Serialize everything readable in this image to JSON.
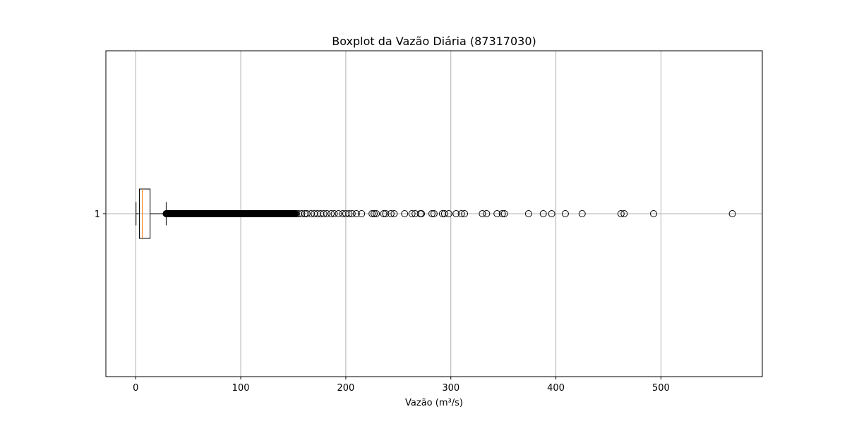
{
  "chart_data": {
    "type": "boxplot",
    "orientation": "horizontal",
    "title": "Boxplot da Vazão Diária (87317030)",
    "xlabel": "Vazão (m³/s)",
    "ylabel": "",
    "xlim": [
      -28.4,
      596.5
    ],
    "xticks": [
      0,
      100,
      200,
      300,
      400,
      500
    ],
    "yticks": [
      "1"
    ],
    "grid": true,
    "box": {
      "category": "1",
      "whisker_low": 0.3,
      "q1": 3.5,
      "median": 6.2,
      "q3": 13.7,
      "whisker_high": 29.0
    },
    "outlier_band": [
      29.0,
      152.0
    ],
    "outliers": [
      153,
      155,
      158,
      161,
      163,
      167,
      170,
      173,
      176,
      179,
      182,
      186,
      189,
      193,
      197,
      200,
      203,
      206,
      210,
      215,
      225,
      227,
      229,
      236,
      238,
      243,
      246,
      256,
      263,
      266,
      271,
      272,
      282,
      284,
      292,
      294,
      298,
      305,
      310,
      313,
      330,
      334,
      344,
      349,
      351,
      374,
      388,
      396,
      409,
      425,
      462,
      465,
      493,
      568
    ],
    "colors": {
      "box": "#000000",
      "median": "#ff7f0e",
      "grid": "#b0b0b0",
      "outlier_edge": "#000000"
    }
  }
}
